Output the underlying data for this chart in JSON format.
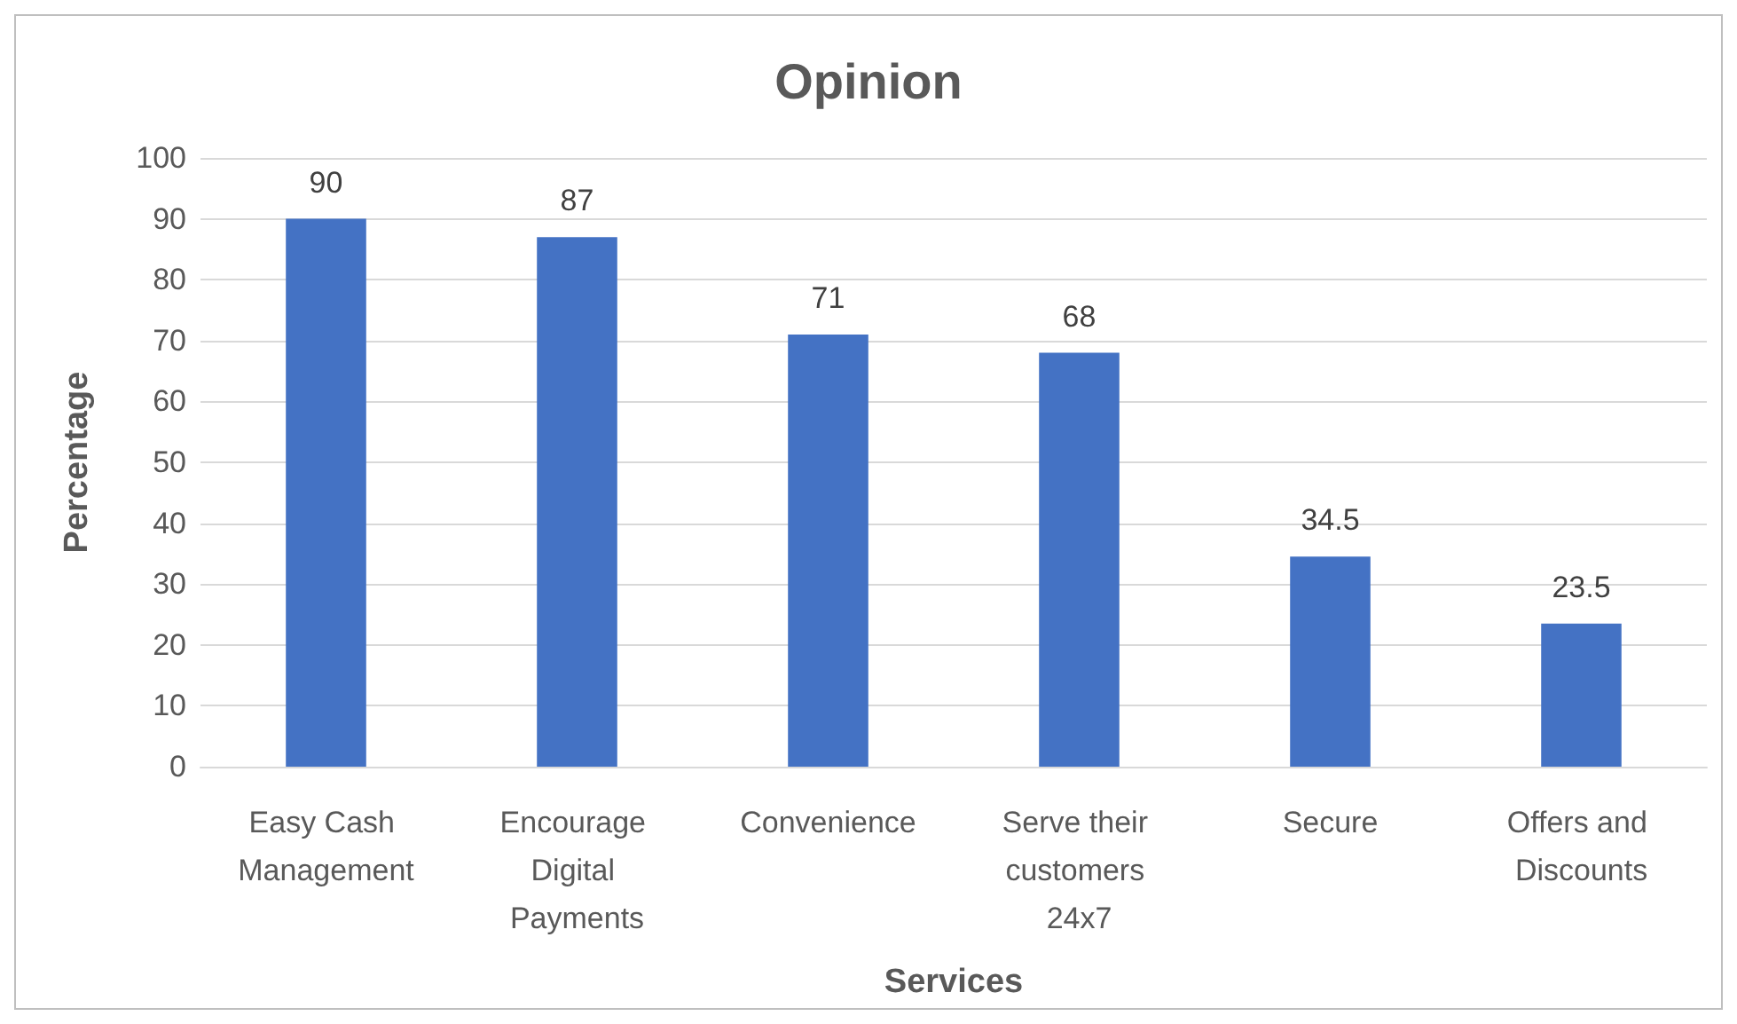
{
  "chart_data": {
    "type": "bar",
    "title": "Opinion",
    "xlabel": "Services",
    "ylabel": "Percentage",
    "categories": [
      "Easy Cash Management",
      "Encourage Digital Payments",
      "Convenience",
      "Serve their customers 24x7",
      "Secure",
      "Offers and Discounts"
    ],
    "values": [
      90,
      87,
      71,
      68,
      34.5,
      23.5
    ],
    "color": "#4472c4",
    "ylim": [
      0,
      100
    ],
    "yticks": [
      0,
      10,
      20,
      30,
      40,
      50,
      60,
      70,
      80,
      90,
      100
    ],
    "grid": "y",
    "data_labels": true
  }
}
